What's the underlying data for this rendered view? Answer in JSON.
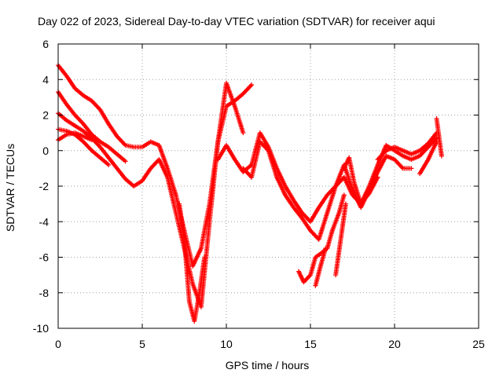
{
  "chart_data": {
    "type": "scatter",
    "title": "Day 022 of 2023, Sidereal Day-to-day VTEC variation (SDTVAR) for receiver aqui",
    "xlabel": "GPS time / hours",
    "ylabel": "SDTVAR / TECUs",
    "xlim": [
      0,
      25
    ],
    "ylim": [
      -10,
      6
    ],
    "xticks": [
      "0",
      "5",
      "10",
      "15",
      "20",
      "25"
    ],
    "yticks": [
      "-10",
      "-8",
      "-6",
      "-4",
      "-2",
      "0",
      "2",
      "4",
      "6"
    ],
    "grid": true,
    "marker": "+",
    "colors": {
      "series": "#ff0000",
      "grid": "#a0a0a0",
      "frame": "#000000"
    },
    "series": [
      {
        "x": [
          0.0,
          0.5,
          1.0,
          1.5,
          2.0,
          2.5,
          3.0,
          3.5,
          4.0,
          4.5,
          5.0,
          5.5,
          6.0,
          6.5,
          7.0,
          7.5,
          8.0,
          8.5,
          9.0,
          9.5,
          10.0,
          10.5,
          11.0
        ],
        "y": [
          4.8,
          4.2,
          3.5,
          3.1,
          2.8,
          2.3,
          1.5,
          0.8,
          0.3,
          0.2,
          0.2,
          0.5,
          0.3,
          -1.0,
          -2.5,
          -4.5,
          -6.5,
          -5.5,
          -3.0,
          0.5,
          3.8,
          2.5,
          1.0
        ]
      },
      {
        "x": [
          0.0,
          0.5,
          1.0,
          1.5,
          2.0,
          2.5,
          3.0,
          3.5,
          4.0
        ],
        "y": [
          3.3,
          2.6,
          2.0,
          1.5,
          0.9,
          0.5,
          0.2,
          -0.2,
          -0.6
        ]
      },
      {
        "x": [
          0.0,
          0.5,
          1.0,
          1.5,
          2.0,
          2.5,
          3.0,
          3.5,
          4.0,
          4.5,
          5.0,
          5.5,
          6.0,
          6.5,
          7.0,
          7.5,
          8.0,
          8.5,
          9.0,
          9.5,
          10.0,
          10.5,
          11.0,
          11.5
        ],
        "y": [
          2.1,
          1.7,
          1.4,
          1.1,
          0.7,
          0.2,
          -0.4,
          -1.0,
          -1.6,
          -2.0,
          -1.7,
          -1.0,
          -0.5,
          -1.5,
          -3.5,
          -5.5,
          -7.5,
          -8.8,
          -4.0,
          0.5,
          2.5,
          2.8,
          3.2,
          3.7
        ]
      },
      {
        "x": [
          0.0,
          0.5,
          1.0,
          1.5,
          2.0,
          2.5,
          3.0
        ],
        "y": [
          1.2,
          1.1,
          0.9,
          0.5,
          0.0,
          -0.4,
          -0.8
        ]
      },
      {
        "x": [
          0.0,
          0.5,
          1.0,
          1.5,
          2.0
        ],
        "y": [
          0.6,
          0.9,
          1.0,
          0.8,
          0.6
        ]
      },
      {
        "x": [
          7.2,
          7.5,
          7.8,
          8.1,
          8.4,
          8.7
        ],
        "y": [
          -3.0,
          -5.0,
          -8.5,
          -9.6,
          -8.0,
          -6.0
        ]
      },
      {
        "x": [
          9.5,
          10.0,
          10.5,
          11.0,
          11.5,
          12.0,
          12.5,
          13.0,
          13.5,
          14.0,
          14.5,
          15.0,
          15.5,
          16.0,
          16.5,
          17.0,
          17.5,
          18.0,
          18.5,
          19.0,
          19.5,
          20.0,
          20.5,
          21.0,
          21.5,
          22.0,
          22.5
        ],
        "y": [
          -0.5,
          0.3,
          -0.5,
          -1.2,
          -0.8,
          1.0,
          0.2,
          -1.0,
          -2.0,
          -2.8,
          -3.5,
          -4.0,
          -3.2,
          -2.5,
          -2.0,
          -1.5,
          -2.5,
          -3.0,
          -2.0,
          -0.8,
          0.3,
          0.0,
          -0.3,
          -0.5,
          -0.3,
          0.2,
          0.7
        ]
      },
      {
        "x": [
          11.0,
          11.5,
          12.0,
          12.5,
          13.0,
          13.5,
          14.0,
          14.5,
          15.0,
          15.5,
          16.0,
          16.5,
          17.0,
          17.5,
          18.0,
          18.5,
          19.0,
          19.5,
          20.0,
          20.5,
          21.0
        ],
        "y": [
          -1.0,
          -1.5,
          0.5,
          0.0,
          -1.5,
          -2.5,
          -3.2,
          -3.8,
          -4.5,
          -5.0,
          -3.5,
          -2.0,
          -0.8,
          -2.2,
          -3.2,
          -2.2,
          -1.2,
          -0.3,
          -0.5,
          -1.0,
          -1.0
        ]
      },
      {
        "x": [
          14.3,
          14.6,
          15.0,
          15.3,
          15.6,
          16.0,
          16.3,
          16.7,
          17.0
        ],
        "y": [
          -6.8,
          -7.4,
          -7.0,
          -6.0,
          -5.8,
          -5.5,
          -4.5,
          -3.5,
          -2.5
        ]
      },
      {
        "x": [
          15.3,
          15.6,
          15.9
        ],
        "y": [
          -7.6,
          -6.5,
          -5.5
        ]
      },
      {
        "x": [
          16.5,
          16.8,
          17.1
        ],
        "y": [
          -7.0,
          -5.0,
          -3.0
        ]
      },
      {
        "x": [
          17.0,
          17.3,
          17.6,
          18.0,
          18.5,
          19.0
        ],
        "y": [
          -1.0,
          -0.4,
          -1.8,
          -3.0,
          -2.4,
          -1.5
        ]
      },
      {
        "x": [
          19.0,
          19.5,
          20.0,
          20.5,
          21.0,
          21.5,
          22.0,
          22.5
        ],
        "y": [
          -0.5,
          0.0,
          0.2,
          0.0,
          -0.2,
          0.0,
          0.4,
          1.0
        ]
      },
      {
        "x": [
          21.5,
          22.0,
          22.5
        ],
        "y": [
          -1.3,
          -0.5,
          0.5
        ]
      },
      {
        "x": [
          22.5,
          22.8
        ],
        "y": [
          1.8,
          -0.3
        ]
      }
    ]
  }
}
